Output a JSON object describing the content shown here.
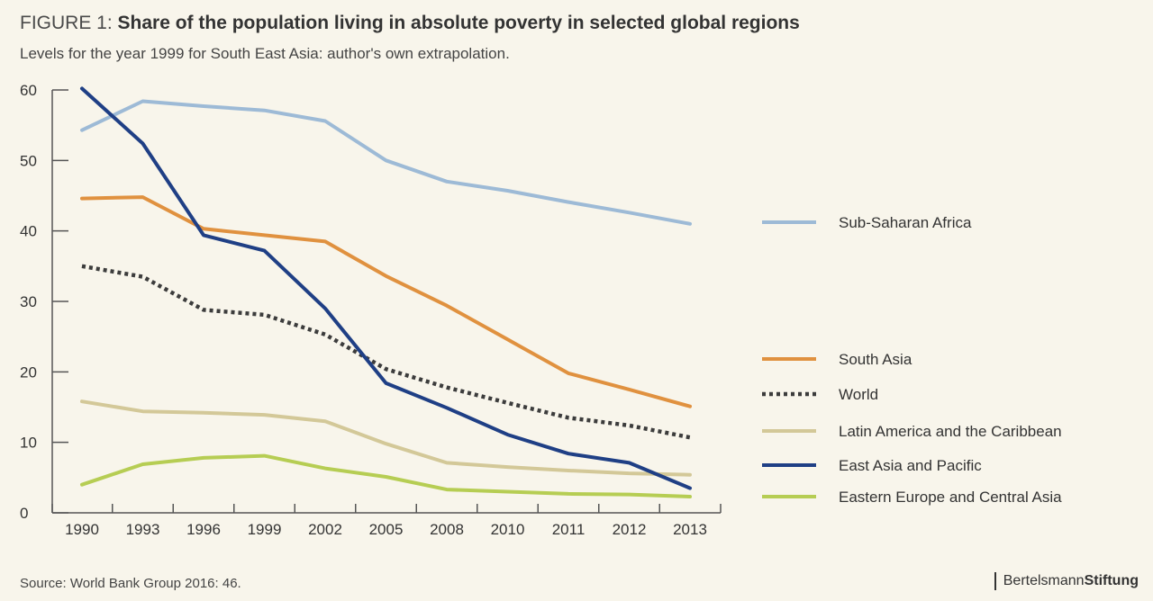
{
  "header": {
    "figure_label": "FIGURE 1:",
    "title": "Share of the population living in absolute poverty in selected global regions",
    "subtitle": "Levels for the year 1999 for South East Asia: author's own extrapolation."
  },
  "footer": {
    "source": "Source: World Bank Group 2016: 46.",
    "brand_part1": "Bertelsmann",
    "brand_part2": "Stiftung"
  },
  "chart_data": {
    "type": "line",
    "title": "Share of the population living in absolute poverty in selected global regions",
    "xlabel": "",
    "ylabel": "",
    "categories": [
      "1990",
      "1993",
      "1996",
      "1999",
      "2002",
      "2005",
      "2008",
      "2010",
      "2011",
      "2012",
      "2013"
    ],
    "yticks": [
      "0",
      "10",
      "20",
      "30",
      "40",
      "50",
      "60"
    ],
    "ylim": [
      0,
      60
    ],
    "grid": false,
    "legend_position": "right",
    "series": [
      {
        "name": "Sub-Saharan Africa",
        "color": "#9dbad6",
        "style": "solid",
        "values": [
          54.3,
          58.4,
          57.7,
          57.1,
          55.6,
          50.0,
          47.0,
          45.7,
          44.1,
          42.6,
          41.0
        ]
      },
      {
        "name": "South Asia",
        "color": "#e0913f",
        "style": "solid",
        "values": [
          44.6,
          44.8,
          40.3,
          39.4,
          38.5,
          33.6,
          29.4,
          24.6,
          19.8,
          17.5,
          15.1
        ]
      },
      {
        "name": "World",
        "color": "#3c3c3c",
        "style": "dotted",
        "values": [
          35.0,
          33.5,
          28.8,
          28.1,
          25.3,
          20.4,
          17.8,
          15.6,
          13.5,
          12.4,
          10.7
        ]
      },
      {
        "name": "Latin America and the Caribbean",
        "color": "#d3c898",
        "style": "solid",
        "values": [
          15.8,
          14.4,
          14.2,
          13.9,
          13.0,
          9.8,
          7.1,
          6.5,
          6.0,
          5.6,
          5.4
        ]
      },
      {
        "name": "East Asia and Pacific",
        "color": "#1f3f85",
        "style": "solid",
        "values": [
          60.2,
          52.4,
          39.4,
          37.2,
          29.0,
          18.4,
          14.9,
          11.1,
          8.4,
          7.1,
          3.5
        ]
      },
      {
        "name": "Eastern Europe and Central Asia",
        "color": "#b6cd53",
        "style": "solid",
        "values": [
          4.0,
          6.9,
          7.8,
          8.1,
          6.3,
          5.1,
          3.3,
          3.0,
          2.7,
          2.6,
          2.3
        ]
      }
    ]
  }
}
